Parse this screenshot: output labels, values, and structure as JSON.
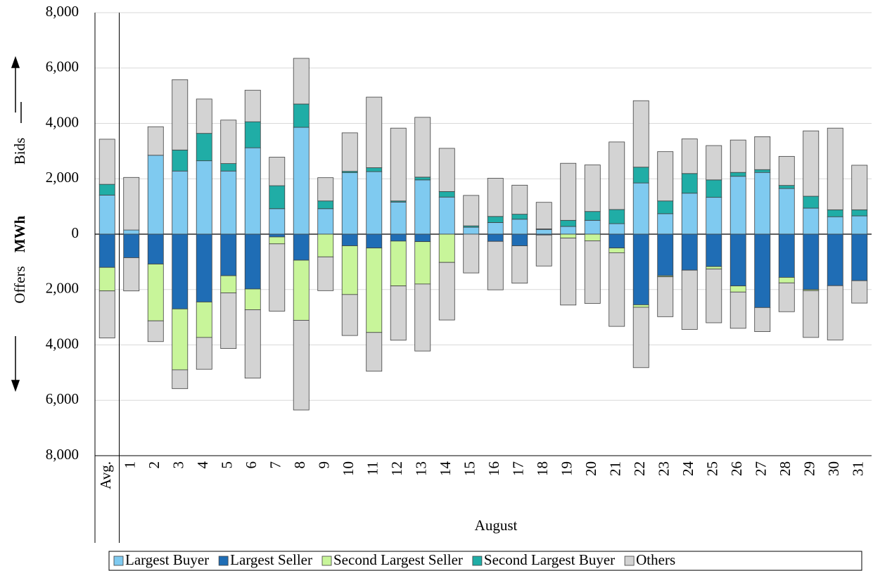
{
  "chart_data": {
    "type": "bar",
    "y_label": "MWh",
    "bid_label": "Bids",
    "offer_label": "Offers",
    "x_label": "August",
    "categories": [
      "Avg.",
      "1",
      "2",
      "3",
      "4",
      "5",
      "6",
      "7",
      "8",
      "9",
      "10",
      "11",
      "12",
      "13",
      "14",
      "15",
      "16",
      "17",
      "18",
      "19",
      "20",
      "21",
      "22",
      "23",
      "24",
      "25",
      "26",
      "27",
      "28",
      "29",
      "30",
      "31"
    ],
    "ylim": [
      -8000,
      8000
    ],
    "yticks": [
      {
        "value": -8000,
        "label": "8,000"
      },
      {
        "value": -6000,
        "label": "6,000"
      },
      {
        "value": -4000,
        "label": "4,000"
      },
      {
        "value": -2000,
        "label": "2,000"
      },
      0,
      {
        "value": 2000,
        "label": "2,000"
      },
      {
        "value": 4000,
        "label": "4,000"
      },
      {
        "value": 6000,
        "label": "6,000"
      },
      {
        "value": 8000,
        "label": "8,000"
      }
    ],
    "grid": true,
    "legend": "bottom",
    "series": [
      {
        "name": "Largest Buyer",
        "color": "#7fcaf0",
        "bids": [
          1410,
          150,
          2850,
          2280,
          2650,
          2280,
          3120,
          920,
          3860,
          920,
          2220,
          2260,
          1160,
          1960,
          1340,
          250,
          420,
          540,
          170,
          280,
          500,
          380,
          1850,
          740,
          1480,
          1330,
          2090,
          2230,
          1650,
          940,
          630,
          660
        ]
      },
      {
        "name": "Largest Seller",
        "color": "#1f6db5",
        "offers": [
          -1200,
          -850,
          -1080,
          -2700,
          -2450,
          -1500,
          -1980,
          -100,
          -940,
          0,
          -420,
          -500,
          -250,
          -270,
          0,
          0,
          -260,
          -420,
          -30,
          0,
          0,
          -500,
          -2550,
          -1500,
          -1300,
          -1170,
          -1870,
          -2650,
          -1560,
          -2000,
          -1860,
          -1680
        ]
      },
      {
        "name": "Second Largest Seller",
        "color": "#c8f59a",
        "offers": [
          -850,
          0,
          -2050,
          -2200,
          -1280,
          -620,
          -750,
          -250,
          -2170,
          -820,
          -1760,
          -3050,
          -1620,
          -1530,
          -1020,
          0,
          0,
          0,
          0,
          -140,
          -240,
          -170,
          -90,
          -40,
          0,
          -90,
          -220,
          0,
          -200,
          -40,
          0,
          0
        ]
      },
      {
        "name": "Second Largest Buyer",
        "color": "#20ada6",
        "bids": [
          390,
          0,
          0,
          760,
          990,
          270,
          940,
          830,
          840,
          280,
          50,
          140,
          40,
          100,
          200,
          50,
          220,
          180,
          20,
          220,
          320,
          510,
          570,
          460,
          710,
          630,
          140,
          100,
          110,
          430,
          250,
          220
        ]
      },
      {
        "name": "Others",
        "color": "#d3d3d3",
        "bids": [
          1630,
          1900,
          1030,
          2540,
          1240,
          1570,
          1140,
          1030,
          1650,
          840,
          1390,
          2550,
          2630,
          2160,
          1560,
          1100,
          1380,
          1050,
          960,
          2060,
          1680,
          2440,
          2400,
          1780,
          1250,
          1240,
          1170,
          1190,
          1050,
          2360,
          2950,
          1610
        ],
        "offers": [
          -1700,
          -1200,
          -750,
          -680,
          -1150,
          -2010,
          -2470,
          -2430,
          -3240,
          -1220,
          -1480,
          -1400,
          -1960,
          -2420,
          -2080,
          -1400,
          -1750,
          -1350,
          -1120,
          -2420,
          -2260,
          -2660,
          -2180,
          -1440,
          -2140,
          -1940,
          -1310,
          -870,
          -1040,
          -1690,
          -1960,
          -810
        ]
      }
    ]
  }
}
